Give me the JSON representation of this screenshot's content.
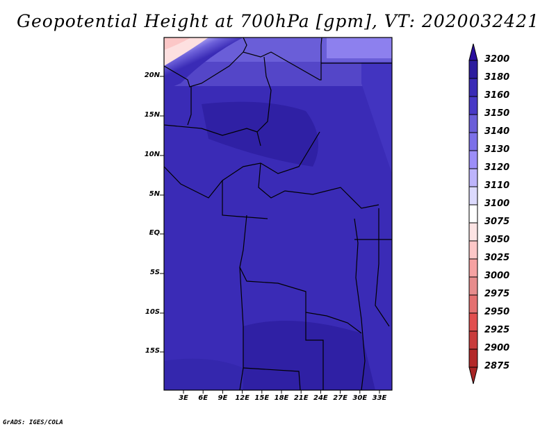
{
  "title": "Geopotential Height at 700hPa [gpm], VT: 2020032421",
  "credit": "GrADS: IGES/COLA",
  "lat_labels": [
    "20N",
    "15N",
    "10N",
    "5N",
    "EQ",
    "5S",
    "10S",
    "15S"
  ],
  "lon_labels": [
    "3E",
    "6E",
    "9E",
    "12E",
    "15E",
    "18E",
    "21E",
    "24E",
    "27E",
    "30E",
    "33E"
  ],
  "colorbar": {
    "labels": [
      "3200",
      "3180",
      "3160",
      "3150",
      "3140",
      "3130",
      "3120",
      "3110",
      "3100",
      "3075",
      "3050",
      "3025",
      "3000",
      "2975",
      "2950",
      "2925",
      "2900",
      "2875"
    ],
    "colors": [
      "#2c1c9e",
      "#3a2bb6",
      "#4839c6",
      "#6a5ed8",
      "#7c70e8",
      "#9c8ef8",
      "#bdb4fb",
      "#dcdafd",
      "#ffffff",
      "#fde4e4",
      "#fcc7c7",
      "#f6a2a2",
      "#e78c8c",
      "#e47070",
      "#e14e4e",
      "#c93c3c",
      "#b32828"
    ],
    "over_color": "#2a0f9e",
    "under_color": "#a82424"
  }
}
